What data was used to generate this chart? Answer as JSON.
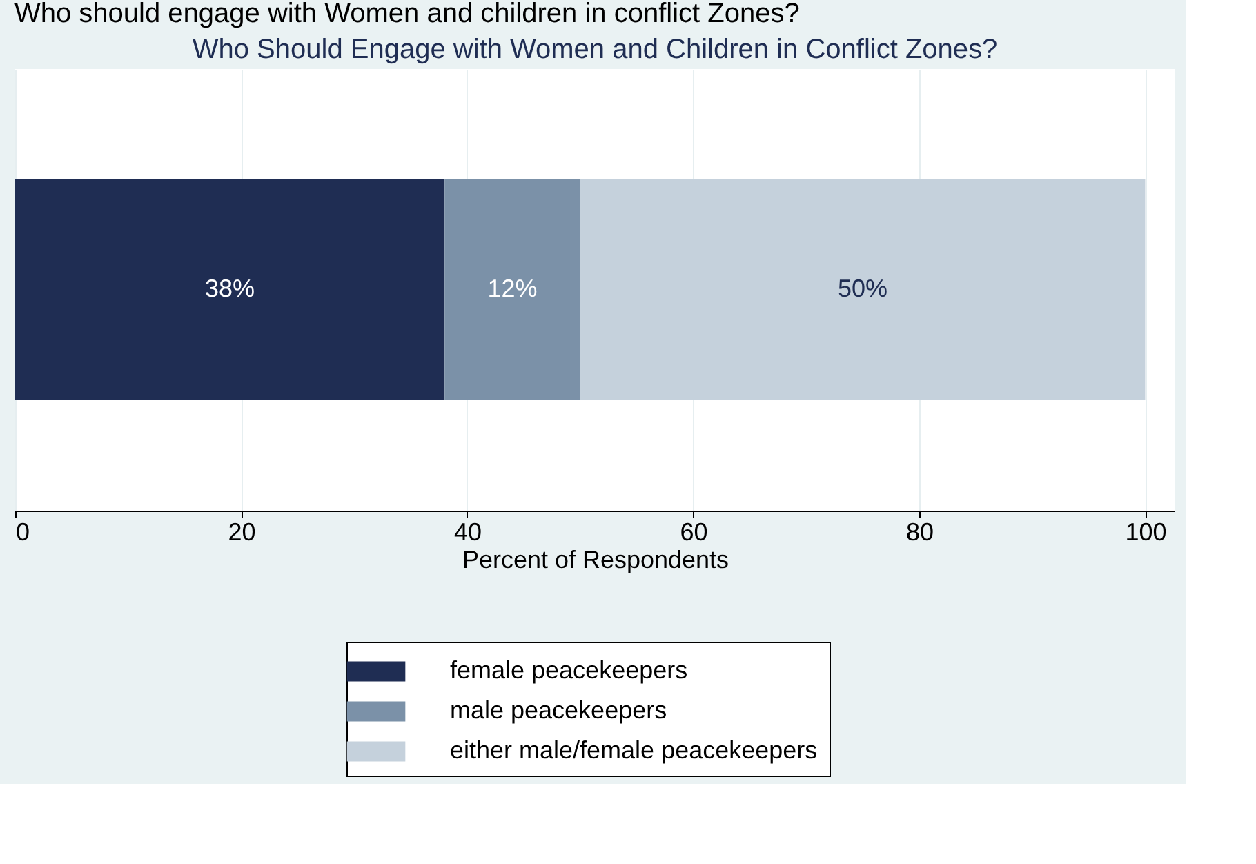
{
  "chart_data": {
    "type": "bar",
    "orientation": "horizontal",
    "stacked": true,
    "title": "Who Should Engage with Women and Children in Conflict Zones?",
    "annotations": [
      "Who should engage with Women and children in conflict Zones?"
    ],
    "xlabel": "Percent of Respondents",
    "categories": [
      null
    ],
    "series": [
      {
        "name": "female peacekeepers",
        "color": "#1f2d53",
        "values": [
          38
        ],
        "value_labels": [
          "38%"
        ]
      },
      {
        "name": "male peacekeepers",
        "color": "#7b91a8",
        "values": [
          12
        ],
        "value_labels": [
          "12%"
        ]
      },
      {
        "name": "either male/female peacekeepers",
        "color": "#c5d1dc",
        "values": [
          50
        ],
        "value_labels": [
          "50%"
        ]
      }
    ],
    "xlim": [
      0,
      102.6
    ],
    "xticks": [
      0,
      20,
      40,
      60,
      80,
      100
    ],
    "grid": "x",
    "legend": "bottom"
  }
}
